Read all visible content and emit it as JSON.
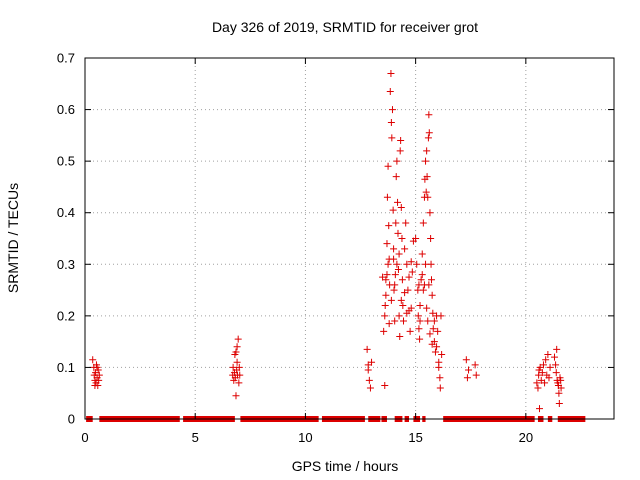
{
  "chart_data": {
    "type": "scatter",
    "title": "Day 326 of 2019, SRMTID for receiver grot",
    "xlabel": "GPS time / hours",
    "ylabel": "SRMTID / TECUs",
    "xlim": [
      0,
      24
    ],
    "ylim": [
      0,
      0.7
    ],
    "xticks": [
      0,
      5,
      10,
      15,
      20
    ],
    "xtick_labels": [
      "0",
      "5",
      "10",
      "15",
      "20"
    ],
    "yticks": [
      0,
      0.1,
      0.2,
      0.3,
      0.4,
      0.5,
      0.6,
      0.7
    ],
    "ytick_labels": [
      "0",
      "0.1",
      "0.2",
      "0.3",
      "0.4",
      "0.5",
      "0.6",
      "0.7"
    ],
    "grid": true,
    "marker": "+",
    "series_color": "#dd0000",
    "zero_line_segments": [
      [
        0.05,
        0.35
      ],
      [
        0.65,
        4.3
      ],
      [
        4.45,
        6.8
      ],
      [
        7.05,
        10.6
      ],
      [
        10.75,
        12.7
      ],
      [
        12.85,
        13.4
      ],
      [
        13.45,
        13.7
      ],
      [
        14.05,
        14.4
      ],
      [
        14.5,
        14.7
      ],
      [
        14.9,
        15.2
      ],
      [
        15.3,
        15.45
      ],
      [
        16.25,
        20.4
      ],
      [
        20.55,
        20.8
      ],
      [
        21.0,
        21.2
      ],
      [
        21.45,
        22.7
      ]
    ],
    "points": [
      [
        0.35,
        0.115
      ],
      [
        0.4,
        0.1
      ],
      [
        0.42,
        0.085
      ],
      [
        0.45,
        0.075
      ],
      [
        0.48,
        0.09
      ],
      [
        0.5,
        0.07
      ],
      [
        0.52,
        0.105
      ],
      [
        0.55,
        0.08
      ],
      [
        0.58,
        0.065
      ],
      [
        0.6,
        0.095
      ],
      [
        0.62,
        0.075
      ],
      [
        0.65,
        0.085
      ],
      [
        0.45,
        0.065
      ],
      [
        0.55,
        0.1
      ],
      [
        6.7,
        0.085
      ],
      [
        6.72,
        0.1
      ],
      [
        6.75,
        0.075
      ],
      [
        6.78,
        0.09
      ],
      [
        6.8,
        0.125
      ],
      [
        6.82,
        0.08
      ],
      [
        6.85,
        0.13
      ],
      [
        6.88,
        0.095
      ],
      [
        6.9,
        0.11
      ],
      [
        6.92,
        0.085
      ],
      [
        6.95,
        0.155
      ],
      [
        6.98,
        0.07
      ],
      [
        7.0,
        0.1
      ],
      [
        6.85,
        0.045
      ],
      [
        6.9,
        0.14
      ],
      [
        7.02,
        0.085
      ],
      [
        12.8,
        0.135
      ],
      [
        12.85,
        0.095
      ],
      [
        12.9,
        0.075
      ],
      [
        12.95,
        0.06
      ],
      [
        13.0,
        0.11
      ],
      [
        12.85,
        0.105
      ],
      [
        13.5,
        0.275
      ],
      [
        13.55,
        0.17
      ],
      [
        13.6,
        0.065
      ],
      [
        13.62,
        0.22
      ],
      [
        13.65,
        0.27
      ],
      [
        13.7,
        0.34
      ],
      [
        13.72,
        0.43
      ],
      [
        13.75,
        0.49
      ],
      [
        13.78,
        0.375
      ],
      [
        13.8,
        0.31
      ],
      [
        13.82,
        0.26
      ],
      [
        13.85,
        0.635
      ],
      [
        13.88,
        0.67
      ],
      [
        13.9,
        0.575
      ],
      [
        13.92,
        0.545
      ],
      [
        13.95,
        0.6
      ],
      [
        13.98,
        0.405
      ],
      [
        14.0,
        0.33
      ],
      [
        14.02,
        0.25
      ],
      [
        14.05,
        0.19
      ],
      [
        14.08,
        0.28
      ],
      [
        14.1,
        0.38
      ],
      [
        14.12,
        0.47
      ],
      [
        14.15,
        0.5
      ],
      [
        14.18,
        0.42
      ],
      [
        14.2,
        0.36
      ],
      [
        14.22,
        0.29
      ],
      [
        14.25,
        0.2
      ],
      [
        14.28,
        0.16
      ],
      [
        14.3,
        0.52
      ],
      [
        14.32,
        0.54
      ],
      [
        14.35,
        0.41
      ],
      [
        14.38,
        0.35
      ],
      [
        14.4,
        0.27
      ],
      [
        14.42,
        0.22
      ],
      [
        14.45,
        0.19
      ],
      [
        14.5,
        0.33
      ],
      [
        14.55,
        0.38
      ],
      [
        14.6,
        0.3
      ],
      [
        14.65,
        0.25
      ],
      [
        14.7,
        0.21
      ],
      [
        14.75,
        0.17
      ],
      [
        14.8,
        0.305
      ],
      [
        14.85,
        0.285
      ],
      [
        14.9,
        0.345
      ],
      [
        13.6,
        0.2
      ],
      [
        13.65,
        0.24
      ],
      [
        13.7,
        0.28
      ],
      [
        13.75,
        0.3
      ],
      [
        13.8,
        0.185
      ],
      [
        13.9,
        0.23
      ],
      [
        14.0,
        0.31
      ],
      [
        14.05,
        0.26
      ],
      [
        14.15,
        0.3
      ],
      [
        14.25,
        0.32
      ],
      [
        14.35,
        0.23
      ],
      [
        14.5,
        0.245
      ],
      [
        14.6,
        0.205
      ],
      [
        14.7,
        0.275
      ],
      [
        14.8,
        0.215
      ],
      [
        15.0,
        0.35
      ],
      [
        15.05,
        0.3
      ],
      [
        15.1,
        0.25
      ],
      [
        15.12,
        0.2
      ],
      [
        15.15,
        0.175
      ],
      [
        15.18,
        0.155
      ],
      [
        15.2,
        0.22
      ],
      [
        15.25,
        0.27
      ],
      [
        15.3,
        0.32
      ],
      [
        15.35,
        0.38
      ],
      [
        15.4,
        0.43
      ],
      [
        15.42,
        0.465
      ],
      [
        15.45,
        0.5
      ],
      [
        15.48,
        0.44
      ],
      [
        15.5,
        0.52
      ],
      [
        15.52,
        0.47
      ],
      [
        15.55,
        0.43
      ],
      [
        15.58,
        0.545
      ],
      [
        15.6,
        0.59
      ],
      [
        15.62,
        0.555
      ],
      [
        15.65,
        0.4
      ],
      [
        15.68,
        0.35
      ],
      [
        15.7,
        0.3
      ],
      [
        15.72,
        0.27
      ],
      [
        15.75,
        0.24
      ],
      [
        15.78,
        0.205
      ],
      [
        15.8,
        0.175
      ],
      [
        15.85,
        0.15
      ],
      [
        15.9,
        0.13
      ],
      [
        15.95,
        0.2
      ],
      [
        16.0,
        0.17
      ],
      [
        16.05,
        0.11
      ],
      [
        16.1,
        0.08
      ],
      [
        16.12,
        0.06
      ],
      [
        16.15,
        0.2
      ],
      [
        16.18,
        0.125
      ],
      [
        15.3,
        0.28
      ],
      [
        15.35,
        0.25
      ],
      [
        15.4,
        0.26
      ],
      [
        15.45,
        0.3
      ],
      [
        15.5,
        0.215
      ],
      [
        15.55,
        0.19
      ],
      [
        15.6,
        0.26
      ],
      [
        15.65,
        0.165
      ],
      [
        15.75,
        0.145
      ],
      [
        15.85,
        0.19
      ],
      [
        15.95,
        0.14
      ],
      [
        16.05,
        0.1
      ],
      [
        15.2,
        0.19
      ],
      [
        15.15,
        0.26
      ],
      [
        17.3,
        0.115
      ],
      [
        17.35,
        0.08
      ],
      [
        17.4,
        0.095
      ],
      [
        17.7,
        0.105
      ],
      [
        17.75,
        0.085
      ],
      [
        20.5,
        0.07
      ],
      [
        20.55,
        0.06
      ],
      [
        20.58,
        0.085
      ],
      [
        20.6,
        0.095
      ],
      [
        20.62,
        0.02
      ],
      [
        20.65,
        0.1
      ],
      [
        20.7,
        0.075
      ],
      [
        20.75,
        0.09
      ],
      [
        20.8,
        0.105
      ],
      [
        20.85,
        0.07
      ],
      [
        20.9,
        0.115
      ],
      [
        20.95,
        0.085
      ],
      [
        21.0,
        0.125
      ],
      [
        21.05,
        0.08
      ],
      [
        21.1,
        0.1
      ],
      [
        21.3,
        0.12
      ],
      [
        21.35,
        0.105
      ],
      [
        21.38,
        0.09
      ],
      [
        21.4,
        0.135
      ],
      [
        21.42,
        0.075
      ],
      [
        21.45,
        0.07
      ],
      [
        21.48,
        0.065
      ],
      [
        21.5,
        0.05
      ],
      [
        21.52,
        0.03
      ],
      [
        21.55,
        0.08
      ],
      [
        21.58,
        0.075
      ],
      [
        21.6,
        0.06
      ]
    ]
  }
}
